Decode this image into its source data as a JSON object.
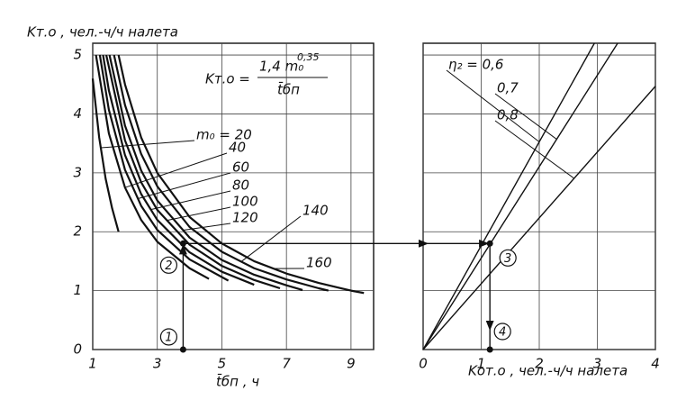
{
  "chart_data": [
    {
      "type": "line",
      "y_label": "Kт.о , чел.-ч/ч налета",
      "x_label": "t̄бп , ч",
      "formula": {
        "lhs": "Kт.о =",
        "numerator": "1,4 m₀",
        "exponent": "0,35",
        "denominator": "t̄бп"
      },
      "xlim": [
        1,
        9.7
      ],
      "ylim": [
        0,
        5.2
      ],
      "xticks": [
        1,
        3,
        5,
        7,
        9
      ],
      "yticks": [
        0,
        1,
        2,
        3,
        4,
        5
      ],
      "grid": true,
      "color": "#111",
      "series": [
        {
          "name": "m₀ = 20",
          "x": [
            1.0,
            1.2,
            1.4,
            1.6,
            1.8
          ],
          "values": [
            4.6,
            3.6,
            2.9,
            2.4,
            2.0
          ]
        },
        {
          "name": "40",
          "x": [
            1.1,
            1.5,
            2,
            2.5,
            3,
            4,
            4.6
          ],
          "values": [
            5.0,
            3.67,
            2.75,
            2.2,
            1.83,
            1.38,
            1.2
          ]
        },
        {
          "name": "60",
          "x": [
            1.22,
            1.5,
            2,
            2.5,
            3,
            4,
            5.2
          ],
          "values": [
            5.0,
            4.07,
            3.05,
            2.44,
            2.03,
            1.53,
            1.17
          ]
        },
        {
          "name": "80",
          "x": [
            1.32,
            1.5,
            2,
            2.5,
            3,
            4,
            5,
            6
          ],
          "values": [
            5.0,
            4.4,
            3.3,
            2.64,
            2.2,
            1.65,
            1.32,
            1.1
          ]
        },
        {
          "name": "100",
          "x": [
            1.42,
            2,
            2.5,
            3,
            4,
            5,
            6,
            6.8
          ],
          "values": [
            5.0,
            3.55,
            2.84,
            2.37,
            1.78,
            1.42,
            1.18,
            1.04
          ]
        },
        {
          "name": "120",
          "x": [
            1.52,
            2,
            2.5,
            3,
            4,
            5,
            6,
            7,
            7.5
          ],
          "values": [
            5.0,
            3.8,
            3.04,
            2.53,
            1.9,
            1.52,
            1.27,
            1.09,
            1.01
          ]
        },
        {
          "name": "140",
          "x": [
            1.66,
            2,
            2.5,
            3,
            4,
            5,
            6,
            7,
            8,
            8.3
          ],
          "values": [
            5.0,
            4.15,
            3.32,
            2.77,
            2.08,
            1.66,
            1.38,
            1.19,
            1.04,
            1.0
          ]
        },
        {
          "name": "160",
          "x": [
            1.8,
            2,
            2.5,
            3,
            4,
            5,
            6,
            7,
            8,
            9,
            9.4
          ],
          "values": [
            5.0,
            4.5,
            3.6,
            3.0,
            2.25,
            1.8,
            1.5,
            1.29,
            1.13,
            1.0,
            0.96
          ]
        }
      ],
      "example": {
        "x": 3.8,
        "y": 1.8,
        "markers": [
          "1",
          "2"
        ]
      }
    },
    {
      "type": "line",
      "x_label": "Kот.о , чел.-ч/ч налета",
      "xlim": [
        0,
        4
      ],
      "ylim": [
        0,
        5.2
      ],
      "xticks": [
        0,
        1,
        2,
        3,
        4
      ],
      "yticks": [
        0,
        1,
        2,
        3,
        4,
        5
      ],
      "show_ytick_labels": false,
      "grid": true,
      "color": "#111",
      "series": [
        {
          "name": "η₂ = 0,6",
          "x": [
            0,
            2.95
          ],
          "values": [
            0,
            5.2
          ]
        },
        {
          "name": "0,7",
          "x": [
            0,
            3.35
          ],
          "values": [
            0,
            5.2
          ]
        },
        {
          "name": "0,8",
          "x": [
            0,
            4
          ],
          "values": [
            0,
            4.47
          ]
        }
      ],
      "example": {
        "x": 1.15,
        "y": 1.8,
        "markers": [
          "3",
          "4"
        ]
      }
    }
  ]
}
